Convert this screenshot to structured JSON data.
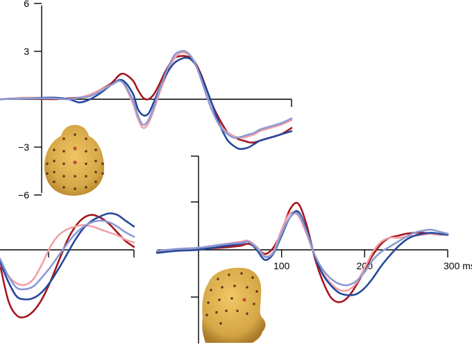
{
  "colors": {
    "dark_red": "#a3161e",
    "pink": "#f2a0a6",
    "dark_blue": "#24479c",
    "light_blue": "#8a9ad4",
    "head_skin": "#d7a848",
    "electrode": "#5a3214",
    "electrode_highlight": "#c84a3c"
  },
  "chart_data": [
    {
      "type": "line",
      "panel": "top-left",
      "title": "",
      "xlabel": "",
      "ylabel": "",
      "ytick_labels": [
        "6",
        "3",
        "−3",
        "−6"
      ],
      "yticks": [
        6,
        3,
        -3,
        -6
      ],
      "ylim": [
        -6,
        6
      ],
      "xlim": [
        -250,
        300
      ],
      "grid": false,
      "x": [
        -250,
        -200,
        -150,
        -120,
        -100,
        -80,
        -60,
        -40,
        -20,
        0,
        10,
        20,
        30,
        40,
        50,
        60,
        70,
        80,
        90,
        100,
        110,
        120,
        130,
        140,
        150,
        160,
        170,
        180,
        190,
        200,
        210,
        220,
        230,
        240,
        260,
        280,
        300
      ],
      "series": [
        {
          "color_key": "dark_red",
          "values": [
            0,
            0.05,
            0,
            0.05,
            0.1,
            0.2,
            0.6,
            1.0,
            1.6,
            1.2,
            0.6,
            0.1,
            0.0,
            0.3,
            0.9,
            1.6,
            2.2,
            2.6,
            2.7,
            2.7,
            2.6,
            2.2,
            1.5,
            0.6,
            -0.3,
            -1.0,
            -1.6,
            -2.1,
            -2.3,
            -2.5,
            -2.6,
            -2.7,
            -2.7,
            -2.6,
            -2.4,
            -2.2,
            -1.8
          ]
        },
        {
          "color_key": "pink",
          "values": [
            0,
            0.1,
            0.05,
            0,
            0.1,
            0.3,
            0.6,
            0.9,
            1.1,
            -0.2,
            -1.2,
            -1.8,
            -1.5,
            -0.7,
            0.3,
            1.2,
            2.0,
            2.6,
            2.9,
            2.9,
            2.7,
            2.1,
            1.2,
            0.2,
            -0.7,
            -1.3,
            -1.8,
            -2.1,
            -2.3,
            -2.4,
            -2.4,
            -2.3,
            -2.2,
            -2.0,
            -1.8,
            -1.6,
            -1.3
          ]
        },
        {
          "color_key": "dark_blue",
          "values": [
            0,
            0.05,
            0.1,
            0,
            -0.2,
            0.0,
            0.4,
            0.9,
            1.2,
            0.4,
            -0.6,
            -1.0,
            -0.9,
            -0.2,
            0.6,
            1.3,
            1.9,
            2.3,
            2.5,
            2.6,
            2.5,
            2.1,
            1.4,
            0.6,
            -0.3,
            -1.2,
            -2.0,
            -2.6,
            -2.9,
            -3.1,
            -3.1,
            -3.0,
            -2.8,
            -2.6,
            -2.4,
            -2.2,
            -2.0
          ]
        },
        {
          "color_key": "light_blue",
          "values": [
            0,
            0.05,
            0.05,
            0,
            0.1,
            0.2,
            0.5,
            0.9,
            1.1,
            0.0,
            -1.0,
            -1.6,
            -1.3,
            -0.5,
            0.5,
            1.4,
            2.2,
            2.8,
            3.0,
            3.0,
            2.7,
            2.1,
            1.2,
            0.2,
            -0.7,
            -1.4,
            -1.9,
            -2.2,
            -2.4,
            -2.4,
            -2.3,
            -2.2,
            -2.1,
            -1.9,
            -1.7,
            -1.5,
            -1.2
          ]
        }
      ]
    },
    {
      "type": "line",
      "panel": "bottom-left-partial",
      "title": "",
      "xlabel": "",
      "ylabel": "",
      "grid": false,
      "x": [
        0,
        10,
        20,
        30,
        40,
        50,
        60,
        70,
        80,
        90,
        100,
        110,
        120,
        130,
        140,
        150,
        160
      ],
      "series": [
        {
          "color_key": "dark_red",
          "values": [
            -1.0,
            -3.5,
            -4.5,
            -4.6,
            -4.2,
            -3.4,
            -2.2,
            -0.8,
            0.6,
            1.6,
            2.2,
            2.4,
            2.2,
            1.8,
            1.2,
            0.6,
            0.2
          ]
        },
        {
          "color_key": "pink",
          "values": [
            -1.0,
            -1.8,
            -2.3,
            -2.4,
            -2.0,
            -1.0,
            0.2,
            1.0,
            1.4,
            1.6,
            1.7,
            1.6,
            1.4,
            1.2,
            1.0,
            0.7,
            0.5
          ]
        },
        {
          "color_key": "dark_blue",
          "values": [
            -0.8,
            -2.2,
            -3.2,
            -3.4,
            -3.3,
            -2.9,
            -2.2,
            -1.3,
            -0.3,
            0.7,
            1.5,
            2.0,
            2.3,
            2.5,
            2.4,
            2.0,
            1.6
          ]
        },
        {
          "color_key": "light_blue",
          "values": [
            -0.6,
            -1.8,
            -2.6,
            -2.7,
            -2.5,
            -1.9,
            -1.2,
            -0.4,
            0.4,
            1.1,
            1.6,
            1.9,
            2.0,
            1.9,
            1.6,
            1.2,
            0.9
          ]
        }
      ]
    },
    {
      "type": "line",
      "panel": "bottom-right",
      "title": "",
      "xlabel": "",
      "ylabel": "",
      "xtick_labels": [
        "100",
        "200",
        "300 ms"
      ],
      "xticks": [
        100,
        200,
        300
      ],
      "xlim": [
        -50,
        300
      ],
      "grid": false,
      "x": [
        -50,
        -25,
        0,
        25,
        50,
        60,
        70,
        80,
        90,
        100,
        110,
        120,
        130,
        140,
        150,
        160,
        170,
        180,
        190,
        200,
        210,
        220,
        230,
        240,
        250,
        260,
        270,
        280,
        290,
        300
      ],
      "series": [
        {
          "color_key": "dark_red",
          "values": [
            -0.2,
            0,
            0.1,
            0.2,
            0.4,
            0.6,
            0.2,
            -0.4,
            0.2,
            1.8,
            4.0,
            4.6,
            2.5,
            -0.8,
            -3.2,
            -4.8,
            -5.2,
            -4.7,
            -3.5,
            -2.0,
            -0.5,
            0.6,
            1.2,
            1.4,
            1.6,
            1.7,
            1.7,
            1.6,
            1.5,
            1.5
          ]
        },
        {
          "color_key": "pink",
          "values": [
            -0.1,
            0,
            0.2,
            0.5,
            0.8,
            0.9,
            0.3,
            -0.6,
            -0.2,
            2.0,
            3.6,
            3.4,
            1.6,
            -0.6,
            -2.3,
            -3.4,
            -4.0,
            -4.0,
            -3.3,
            -1.8,
            -0.2,
            0.8,
            1.2,
            1.2,
            1.3,
            1.4,
            1.5,
            1.6,
            1.5,
            1.5
          ]
        },
        {
          "color_key": "dark_blue",
          "values": [
            -0.3,
            -0.1,
            0,
            0.3,
            0.6,
            0.8,
            0.0,
            -1.0,
            -0.4,
            1.4,
            3.2,
            3.8,
            2.0,
            -0.6,
            -2.5,
            -3.6,
            -4.3,
            -4.5,
            -4.4,
            -3.8,
            -2.8,
            -1.6,
            -0.6,
            0.3,
            1.0,
            1.4,
            1.6,
            1.7,
            1.6,
            1.5
          ]
        },
        {
          "color_key": "light_blue",
          "values": [
            -0.1,
            0.1,
            0.2,
            0.5,
            0.7,
            0.8,
            0.2,
            -0.7,
            -0.3,
            1.6,
            3.2,
            3.6,
            1.8,
            -0.5,
            -2.0,
            -2.9,
            -3.4,
            -3.5,
            -3.1,
            -2.2,
            -1.0,
            -0.2,
            0.3,
            0.8,
            1.3,
            1.7,
            1.9,
            2.0,
            1.8,
            1.6
          ]
        }
      ]
    }
  ]
}
